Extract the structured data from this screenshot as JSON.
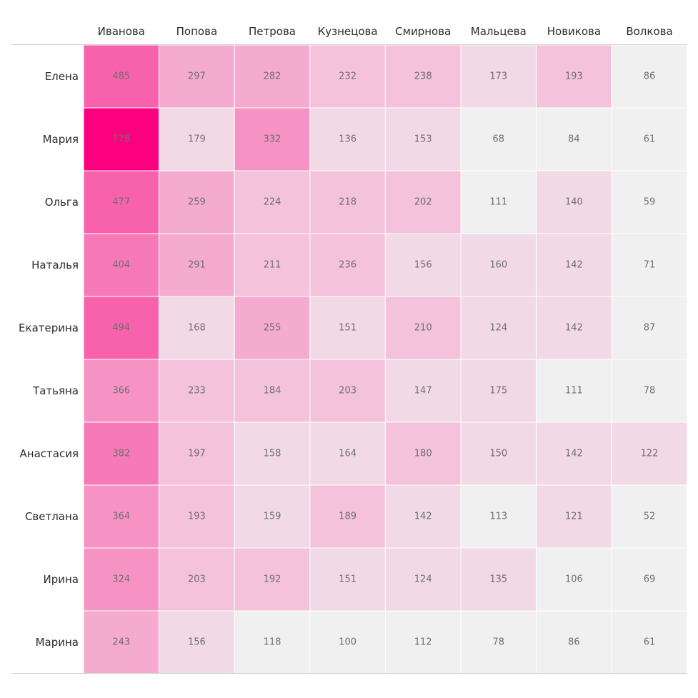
{
  "chart_data": {
    "type": "heatmap",
    "columns": [
      "Иванова",
      "Попова",
      "Петрова",
      "Кузнецова",
      "Смирнова",
      "Мальцева",
      "Новикова",
      "Волкова"
    ],
    "rows": [
      "Елена",
      "Мария",
      "Ольга",
      "Наталья",
      "Екатерина",
      "Татьяна",
      "Анастасия",
      "Светлана",
      "Ирина",
      "Марина"
    ],
    "values": [
      [
        485,
        297,
        282,
        232,
        238,
        173,
        193,
        86
      ],
      [
        778,
        179,
        332,
        136,
        153,
        68,
        84,
        61
      ],
      [
        477,
        259,
        224,
        218,
        202,
        111,
        140,
        59
      ],
      [
        404,
        291,
        211,
        236,
        156,
        160,
        142,
        71
      ],
      [
        494,
        168,
        255,
        151,
        210,
        124,
        142,
        87
      ],
      [
        366,
        233,
        184,
        203,
        147,
        175,
        111,
        78
      ],
      [
        382,
        197,
        158,
        164,
        180,
        150,
        142,
        122
      ],
      [
        364,
        193,
        159,
        189,
        142,
        113,
        121,
        52
      ],
      [
        324,
        203,
        192,
        151,
        124,
        135,
        106,
        69
      ],
      [
        243,
        156,
        118,
        100,
        112,
        78,
        86,
        61
      ]
    ],
    "color_scale": {
      "type": "binned",
      "bins": [
        {
          "min": 0,
          "max": 120,
          "color": "#f0f0f0"
        },
        {
          "min": 120,
          "max": 180,
          "color": "#f2d9e6"
        },
        {
          "min": 180,
          "max": 240,
          "color": "#f4c2db"
        },
        {
          "min": 240,
          "max": 300,
          "color": "#f5aacf"
        },
        {
          "min": 300,
          "max": 380,
          "color": "#f693c4"
        },
        {
          "min": 380,
          "max": 450,
          "color": "#f77ab8"
        },
        {
          "min": 450,
          "max": 600,
          "color": "#f862ad"
        },
        {
          "min": 600,
          "max": 1000,
          "color": "#fd0080"
        }
      ]
    },
    "grid": false,
    "legend": "none"
  }
}
